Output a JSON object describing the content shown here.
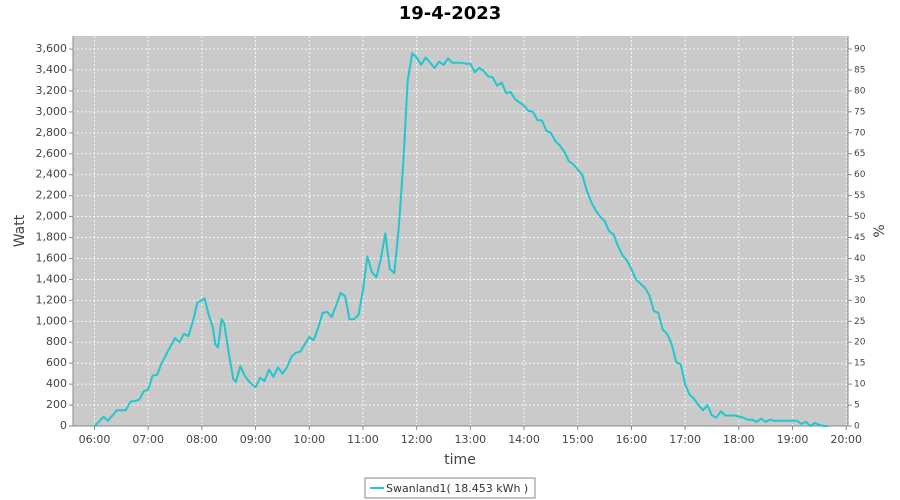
{
  "chart_data": {
    "type": "line",
    "title": "19-4-2023",
    "xlabel": "time",
    "ylabel": "Watt",
    "y2label": "%",
    "grid": true,
    "legend": "bottom",
    "xlim": [
      336,
      1202
    ],
    "xticks": [
      {
        "value": 360,
        "label": "06:00"
      },
      {
        "value": 420,
        "label": "07:00"
      },
      {
        "value": 480,
        "label": "08:00"
      },
      {
        "value": 540,
        "label": "09:00"
      },
      {
        "value": 600,
        "label": "10:00"
      },
      {
        "value": 660,
        "label": "11:00"
      },
      {
        "value": 720,
        "label": "12:00"
      },
      {
        "value": 780,
        "label": "13:00"
      },
      {
        "value": 840,
        "label": "14:00"
      },
      {
        "value": 900,
        "label": "15:00"
      },
      {
        "value": 960,
        "label": "16:00"
      },
      {
        "value": 1020,
        "label": "17:00"
      },
      {
        "value": 1080,
        "label": "18:00"
      },
      {
        "value": 1140,
        "label": "19:00"
      },
      {
        "value": 1200,
        "label": "20:00"
      }
    ],
    "ylim": [
      0,
      3725
    ],
    "yticks": [
      0,
      200,
      400,
      600,
      800,
      {
        "value": 1000,
        "label": "1,000"
      },
      {
        "value": 1200,
        "label": "1,200"
      },
      {
        "value": 1400,
        "label": "1,400"
      },
      {
        "value": 1600,
        "label": "1,600"
      },
      {
        "value": 1800,
        "label": "1,800"
      },
      {
        "value": 2000,
        "label": "2,000"
      },
      {
        "value": 2200,
        "label": "2,200"
      },
      {
        "value": 2400,
        "label": "2,400"
      },
      {
        "value": 2600,
        "label": "2,600"
      },
      {
        "value": 2800,
        "label": "2,800"
      },
      {
        "value": 3000,
        "label": "3,000"
      },
      {
        "value": 3200,
        "label": "3,200"
      },
      {
        "value": 3400,
        "label": "3,400"
      },
      {
        "value": 3600,
        "label": "3,600"
      }
    ],
    "y2lim": [
      0,
      93.1
    ],
    "y2ticks": [
      0,
      5,
      10,
      15,
      20,
      25,
      30,
      35,
      40,
      45,
      50,
      55,
      60,
      65,
      70,
      75,
      80,
      85,
      90
    ],
    "x": [
      360,
      365,
      370,
      375,
      380,
      385,
      395,
      400,
      410,
      415,
      420,
      425,
      430,
      435,
      440,
      445,
      450,
      455,
      460,
      465,
      470,
      475,
      480,
      483,
      488,
      492,
      495,
      498,
      502,
      505,
      510,
      515,
      518,
      523,
      528,
      533,
      540,
      545,
      550,
      555,
      560,
      565,
      570,
      575,
      580,
      585,
      590,
      595,
      600,
      605,
      610,
      615,
      620,
      625,
      630,
      635,
      640,
      645,
      650,
      655,
      660,
      665,
      670,
      675,
      680,
      685,
      690,
      695,
      700,
      705,
      710,
      715,
      720,
      725,
      730,
      735,
      740,
      745,
      750,
      755,
      760,
      765,
      770,
      775,
      780,
      785,
      790,
      795,
      800,
      805,
      810,
      815,
      820,
      825,
      830,
      835,
      840,
      845,
      850,
      855,
      860,
      865,
      870,
      875,
      880,
      885,
      890,
      895,
      900,
      905,
      910,
      915,
      920,
      925,
      930,
      935,
      940,
      945,
      950,
      955,
      960,
      965,
      970,
      975,
      980,
      985,
      990,
      995,
      1000,
      1005,
      1010,
      1015,
      1020,
      1025,
      1030,
      1035,
      1040,
      1045,
      1050,
      1055,
      1060,
      1065,
      1070,
      1075,
      1080,
      1085,
      1090,
      1095,
      1100,
      1105,
      1110,
      1115,
      1120,
      1125,
      1130,
      1135,
      1140,
      1145,
      1150,
      1155,
      1160,
      1165,
      1170,
      1175,
      1180
    ],
    "series": [
      {
        "name": "Swanland1( 18.453 kWh )",
        "color": "#1fc8cf",
        "values": [
          0,
          40,
          90,
          50,
          100,
          150,
          150,
          230,
          250,
          330,
          350,
          480,
          490,
          600,
          680,
          760,
          840,
          800,
          880,
          860,
          1000,
          1180,
          1200,
          1220,
          1050,
          950,
          780,
          750,
          1020,
          980,
          700,
          450,
          420,
          570,
          480,
          420,
          370,
          460,
          430,
          540,
          470,
          560,
          500,
          560,
          660,
          700,
          710,
          780,
          850,
          820,
          940,
          1080,
          1090,
          1040,
          1150,
          1270,
          1240,
          1020,
          1020,
          1060,
          1300,
          1620,
          1470,
          1420,
          1600,
          1840,
          1500,
          1460,
          1900,
          2500,
          3300,
          3560,
          3520,
          3450,
          3520,
          3470,
          3420,
          3480,
          3450,
          3510,
          3470,
          3470,
          3470,
          3460,
          3460,
          3380,
          3420,
          3390,
          3340,
          3330,
          3250,
          3280,
          3180,
          3190,
          3120,
          3090,
          3060,
          3010,
          3000,
          2920,
          2920,
          2820,
          2800,
          2720,
          2680,
          2620,
          2530,
          2500,
          2450,
          2400,
          2250,
          2140,
          2060,
          2000,
          1960,
          1860,
          1830,
          1720,
          1630,
          1580,
          1500,
          1400,
          1360,
          1320,
          1250,
          1100,
          1080,
          920,
          880,
          780,
          610,
          590,
          400,
          300,
          260,
          200,
          150,
          200,
          100,
          80,
          140,
          100,
          100,
          100,
          90,
          80,
          60,
          60,
          40,
          70,
          40,
          60,
          50,
          50,
          50,
          50,
          50,
          50,
          20,
          40,
          0,
          30,
          10,
          0,
          0
        ]
      }
    ]
  }
}
